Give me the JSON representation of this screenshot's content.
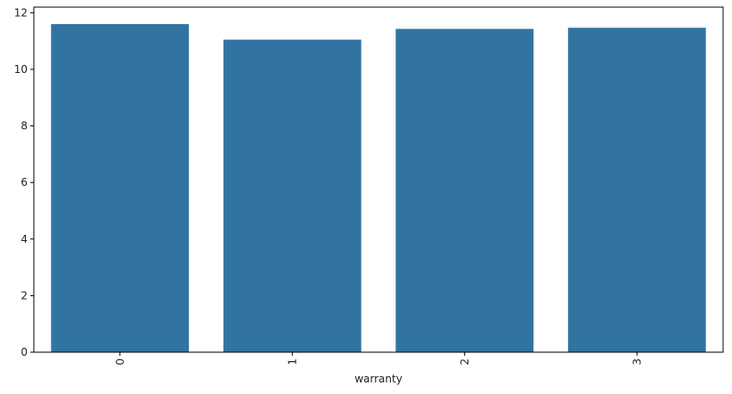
{
  "chart_data": {
    "type": "bar",
    "title": "",
    "xlabel": "warranty",
    "ylabel": "",
    "categories": [
      "0",
      "1",
      "2",
      "3"
    ],
    "values": [
      11.6,
      11.05,
      11.43,
      11.47
    ],
    "ylim": [
      0,
      12.2
    ],
    "yticks": [
      0,
      2,
      4,
      6,
      8,
      10,
      12
    ],
    "grid": false,
    "legend": "none",
    "bar_color": "#3274A1",
    "x_tick_rotation": "vertical"
  }
}
